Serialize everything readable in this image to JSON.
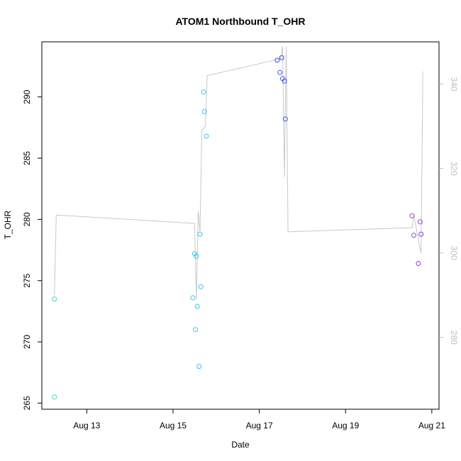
{
  "chart_data": {
    "type": "scatter",
    "title": "ATOM1 Northbound T_OHR",
    "xlabel": "Date",
    "ylabel": "T_OHR",
    "x_unit": "date",
    "xlim": [
      "2015-08-11T23:00",
      "2015-08-21T04:00"
    ],
    "xticks": [
      {
        "date": "2015-08-13T00:00",
        "label": "Aug 13"
      },
      {
        "date": "2015-08-15T00:00",
        "label": "Aug 15"
      },
      {
        "date": "2015-08-17T00:00",
        "label": "Aug 17"
      },
      {
        "date": "2015-08-19T00:00",
        "label": "Aug 19"
      },
      {
        "date": "2015-08-21T00:00",
        "label": "Aug 21"
      }
    ],
    "ylim": [
      264.5,
      294.5
    ],
    "yticks": [
      265,
      270,
      275,
      280,
      285,
      290
    ],
    "y2lim": [
      263,
      350
    ],
    "y2ticks": [
      280,
      300,
      320,
      340
    ],
    "grid": false,
    "legend": "none",
    "series": [
      {
        "color": "#4dd9b3",
        "points": [
          {
            "x": "2015-08-12T06:00",
            "y": 273.5
          },
          {
            "x": "2015-08-12T06:00",
            "y": 265.5
          }
        ]
      },
      {
        "color": "#33c6ee",
        "points": [
          {
            "x": "2015-08-15T11:00",
            "y": 273.6
          },
          {
            "x": "2015-08-15T12:00",
            "y": 277.2
          },
          {
            "x": "2015-08-15T12:30",
            "y": 271.0
          },
          {
            "x": "2015-08-15T13:00",
            "y": 277.0
          },
          {
            "x": "2015-08-15T13:30",
            "y": 272.9
          },
          {
            "x": "2015-08-15T14:30",
            "y": 268.0
          },
          {
            "x": "2015-08-15T15:00",
            "y": 278.8
          },
          {
            "x": "2015-08-15T15:30",
            "y": 274.5
          },
          {
            "x": "2015-08-15T17:00",
            "y": 290.4
          },
          {
            "x": "2015-08-15T17:30",
            "y": 288.8
          },
          {
            "x": "2015-08-15T18:30",
            "y": 286.8
          }
        ]
      },
      {
        "color": "#3d56e0",
        "points": [
          {
            "x": "2015-08-17T10:00",
            "y": 293.0
          },
          {
            "x": "2015-08-17T11:30",
            "y": 292.0
          },
          {
            "x": "2015-08-17T12:30",
            "y": 293.2
          },
          {
            "x": "2015-08-17T13:00",
            "y": 291.5
          },
          {
            "x": "2015-08-17T14:00",
            "y": 291.3
          },
          {
            "x": "2015-08-17T14:30",
            "y": 288.2
          }
        ]
      },
      {
        "color": "#8f3fd9",
        "points": [
          {
            "x": "2015-08-20T13:00",
            "y": 280.3
          },
          {
            "x": "2015-08-20T14:00",
            "y": 278.7
          },
          {
            "x": "2015-08-20T16:30",
            "y": 276.4
          },
          {
            "x": "2015-08-20T17:30",
            "y": 279.8
          },
          {
            "x": "2015-08-20T18:00",
            "y": 278.8
          }
        ]
      }
    ],
    "overlay_line": {
      "axis": "right",
      "color": "#c8c8c8",
      "points": [
        {
          "x": "2015-08-12T06:00",
          "y": 290
        },
        {
          "x": "2015-08-12T07:00",
          "y": 309
        },
        {
          "x": "2015-08-15T12:00",
          "y": 307
        },
        {
          "x": "2015-08-15T13:00",
          "y": 289
        },
        {
          "x": "2015-08-15T14:00",
          "y": 310
        },
        {
          "x": "2015-08-15T15:00",
          "y": 305
        },
        {
          "x": "2015-08-15T16:00",
          "y": 329
        },
        {
          "x": "2015-08-15T18:00",
          "y": 330
        },
        {
          "x": "2015-08-15T19:00",
          "y": 342
        },
        {
          "x": "2015-08-17T12:00",
          "y": 346
        },
        {
          "x": "2015-08-17T13:00",
          "y": 349
        },
        {
          "x": "2015-08-17T14:00",
          "y": 318
        },
        {
          "x": "2015-08-17T15:00",
          "y": 349
        },
        {
          "x": "2015-08-17T16:00",
          "y": 305
        },
        {
          "x": "2015-08-20T13:00",
          "y": 306
        },
        {
          "x": "2015-08-20T14:00",
          "y": 309
        },
        {
          "x": "2015-08-20T17:00",
          "y": 302
        },
        {
          "x": "2015-08-20T18:00",
          "y": 300
        },
        {
          "x": "2015-08-20T19:00",
          "y": 343
        }
      ]
    }
  }
}
